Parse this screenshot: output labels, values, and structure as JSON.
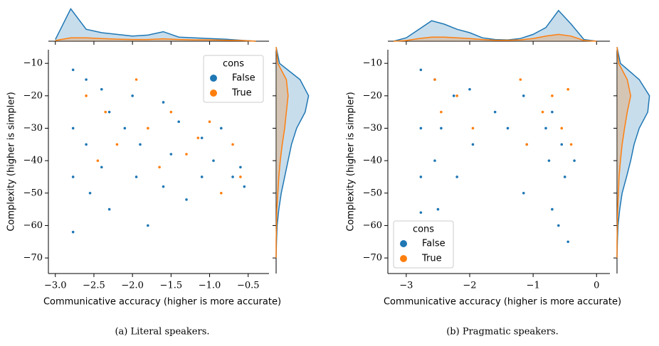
{
  "chart_data": [
    {
      "type": "scatter",
      "caption": "(a) Literal speakers.",
      "xlabel": "Communicative accuracy (higher is more accurate)",
      "ylabel": "Complexity (higher is simpler)",
      "xlim": [
        -3.09,
        -0.23
      ],
      "ylim": [
        -74.8,
        -5.8
      ],
      "xticks": [
        {
          "value": -3.0,
          "label": "−3.0"
        },
        {
          "value": -2.5,
          "label": "−2.5"
        },
        {
          "value": -2.0,
          "label": "−2.0"
        },
        {
          "value": -1.5,
          "label": "−1.5"
        },
        {
          "value": -1.0,
          "label": "−1.0"
        },
        {
          "value": -0.5,
          "label": "−0.5"
        }
      ],
      "yticks": [
        {
          "value": -10,
          "label": "−10"
        },
        {
          "value": -20,
          "label": "−20"
        },
        {
          "value": -30,
          "label": "−30"
        },
        {
          "value": -40,
          "label": "−40"
        },
        {
          "value": -50,
          "label": "−50"
        },
        {
          "value": -60,
          "label": "−60"
        },
        {
          "value": -70,
          "label": "−70"
        }
      ],
      "legend_title": "cons",
      "legend": "upper right",
      "kde_x_grid": [
        -3.0,
        -2.8,
        -2.6,
        -2.4,
        -2.2,
        -2.0,
        -1.8,
        -1.6,
        -1.4,
        -1.2,
        -1.0,
        -0.8,
        -0.6,
        -0.4
      ],
      "kde_y_grid": [
        -5,
        -10,
        -15,
        -20,
        -25,
        -30,
        -35,
        -40,
        -45,
        -50,
        -55,
        -60,
        -65,
        -70
      ],
      "series": [
        {
          "name": "False",
          "color": "#1f77b4",
          "x": [
            -2.77,
            -2.77,
            -2.77,
            -2.77,
            -2.6,
            -2.6,
            -2.55,
            -2.4,
            -2.4,
            -2.3,
            -2.3,
            -2.1,
            -2.0,
            -1.95,
            -1.9,
            -1.8,
            -1.6,
            -1.6,
            -1.5,
            -1.4,
            -1.3,
            -1.1,
            -1.1,
            -0.95,
            -0.85,
            -0.7,
            -0.6,
            -0.55
          ],
          "values": [
            -12,
            -30,
            -45,
            -62,
            -15,
            -35,
            -50,
            -18,
            -42,
            -25,
            -55,
            -30,
            -20,
            -45,
            -35,
            -60,
            -22,
            -48,
            -38,
            -28,
            -52,
            -33,
            -45,
            -40,
            -30,
            -45,
            -42,
            -48
          ],
          "kde_x": [
            0.05,
            0.95,
            0.35,
            0.25,
            0.2,
            0.15,
            0.18,
            0.28,
            0.12,
            0.1,
            0.08,
            0.06,
            0.03,
            0.0
          ],
          "kde_y": [
            0.0,
            0.1,
            0.7,
            0.95,
            0.85,
            0.6,
            0.45,
            0.35,
            0.25,
            0.15,
            0.08,
            0.03,
            0.01,
            0.0
          ]
        },
        {
          "name": "True",
          "color": "#ff7f0e",
          "x": [
            -2.6,
            -2.45,
            -2.35,
            -2.2,
            -1.95,
            -1.8,
            -1.65,
            -1.5,
            -1.3,
            -1.15,
            -1.0,
            -0.85,
            -0.7,
            -0.6
          ],
          "values": [
            -20,
            -40,
            -25,
            -35,
            -15,
            -30,
            -42,
            -25,
            -38,
            -33,
            -28,
            -50,
            -35,
            -45
          ],
          "kde_x": [
            0.02,
            0.1,
            0.1,
            0.08,
            0.06,
            0.05,
            0.05,
            0.07,
            0.05,
            0.04,
            0.04,
            0.03,
            0.02,
            0.0
          ],
          "kde_y": [
            0.0,
            0.05,
            0.3,
            0.35,
            0.3,
            0.25,
            0.18,
            0.12,
            0.08,
            0.05,
            0.02,
            0.01,
            0.0,
            0.0
          ]
        }
      ]
    },
    {
      "type": "scatter",
      "caption": "(b) Pragmatic speakers.",
      "xlabel": "Communicative accuracy (higher is more accurate)",
      "ylabel": "Complexity (higher is simpler)",
      "xlim": [
        -3.29,
        0.21
      ],
      "ylim": [
        -74.8,
        -5.8
      ],
      "xticks": [
        {
          "value": -3,
          "label": "−3"
        },
        {
          "value": -2,
          "label": "−2"
        },
        {
          "value": -1,
          "label": "−1"
        },
        0
      ],
      "yticks": [
        {
          "value": -10,
          "label": "−10"
        },
        {
          "value": -20,
          "label": "−20"
        },
        {
          "value": -30,
          "label": "−30"
        },
        {
          "value": -40,
          "label": "−40"
        },
        {
          "value": -50,
          "label": "−50"
        },
        {
          "value": -60,
          "label": "−60"
        },
        {
          "value": -70,
          "label": "−70"
        }
      ],
      "legend_title": "cons",
      "legend": "lower left",
      "kde_x_grid": [
        -3.2,
        -3.0,
        -2.8,
        -2.6,
        -2.4,
        -2.2,
        -2.0,
        -1.8,
        -1.6,
        -1.4,
        -1.2,
        -1.0,
        -0.8,
        -0.6,
        -0.4,
        -0.2,
        0.0
      ],
      "kde_y_grid": [
        -5,
        -10,
        -15,
        -20,
        -25,
        -30,
        -35,
        -40,
        -45,
        -50,
        -55,
        -60,
        -65,
        -70
      ],
      "series": [
        {
          "name": "False",
          "color": "#1f77b4",
          "x": [
            -2.77,
            -2.77,
            -2.77,
            -2.77,
            -2.55,
            -2.55,
            -2.5,
            -2.45,
            -2.25,
            -2.2,
            -2.0,
            -1.95,
            -1.6,
            -1.4,
            -1.15,
            -1.15,
            -1.1,
            -0.8,
            -0.75,
            -0.7,
            -0.7,
            -0.6,
            -0.55,
            -0.5,
            -0.45,
            -0.35
          ],
          "values": [
            -12,
            -30,
            -45,
            -56,
            -15,
            -40,
            -55,
            -30,
            -20,
            -45,
            -18,
            -35,
            -25,
            -30,
            -20,
            -50,
            -35,
            -30,
            -40,
            -55,
            -25,
            -60,
            -35,
            -45,
            -65,
            -40
          ],
          "kde_x": [
            0.0,
            0.1,
            0.35,
            0.6,
            0.5,
            0.35,
            0.25,
            0.1,
            0.05,
            0.04,
            0.08,
            0.2,
            0.4,
            0.9,
            0.5,
            0.05,
            0.0
          ],
          "kde_y": [
            0.0,
            0.1,
            0.65,
            0.95,
            0.9,
            0.65,
            0.5,
            0.4,
            0.28,
            0.15,
            0.08,
            0.03,
            0.01,
            0.0
          ]
        },
        {
          "name": "True",
          "color": "#ff7f0e",
          "x": [
            -2.55,
            -2.45,
            -2.2,
            -1.95,
            -1.2,
            -1.1,
            -0.85,
            -0.7,
            -0.55,
            -0.45,
            -0.4
          ],
          "values": [
            -15,
            -25,
            -20,
            -30,
            -15,
            -35,
            -25,
            -20,
            -30,
            -18,
            -35
          ],
          "kde_x": [
            0.0,
            0.02,
            0.08,
            0.12,
            0.12,
            0.1,
            0.08,
            0.05,
            0.03,
            0.03,
            0.04,
            0.08,
            0.15,
            0.2,
            0.15,
            0.02,
            0.0
          ],
          "kde_y": [
            0.0,
            0.05,
            0.3,
            0.4,
            0.3,
            0.22,
            0.15,
            0.1,
            0.06,
            0.04,
            0.02,
            0.01,
            0.0,
            0.0
          ]
        }
      ]
    }
  ]
}
